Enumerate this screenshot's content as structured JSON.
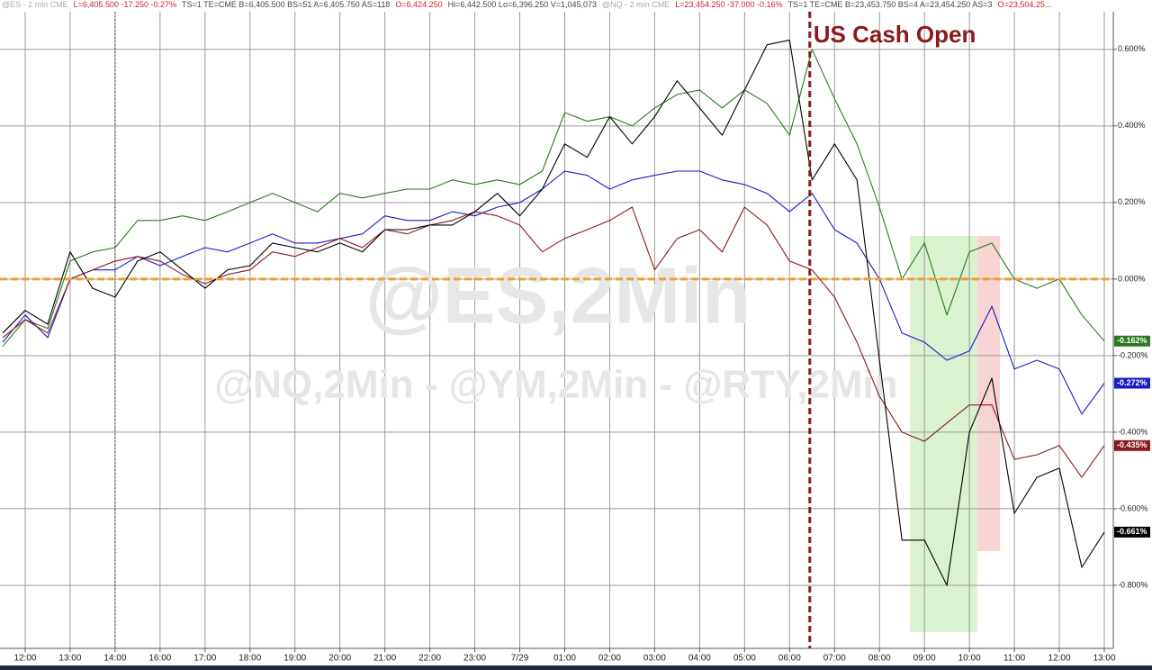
{
  "header": {
    "segments": [
      {
        "text": "@ES - 2 min  CME",
        "color": "#aaaaaa"
      },
      {
        "text": "L=6,405.500  -17.250  -0.27%",
        "color": "#cc2222"
      },
      {
        "text": "TS=1   TE=CME  B=6,405.500  BS=51    A=6,405.750  AS=118",
        "color": "#444444"
      },
      {
        "text": "O=6,424.250",
        "color": "#cc2222"
      },
      {
        "text": "Hi=6,442.500   Lo=6,396.250   V=1,045,073",
        "color": "#444444"
      },
      {
        "text": "@NQ - 2 min  CME",
        "color": "#aaaaaa"
      },
      {
        "text": "L=23,454.250  -37.000  -0.16%",
        "color": "#cc2222"
      },
      {
        "text": "TS=1   TE=CME  B=23,453.750  BS=4    A=23,454.250  AS=3",
        "color": "#444444"
      },
      {
        "text": "O=23,504.25...",
        "color": "#cc2222"
      }
    ]
  },
  "chart_data": {
    "type": "line",
    "watermarks": [
      "@ES,2Min",
      "@NQ,2Min - @YM,2Min - @RTY,2Min"
    ],
    "annotation": {
      "text": "US Cash Open",
      "x": 17.45,
      "color": "#8b1a1a"
    },
    "session_break_x": 2,
    "reference_line": {
      "value": 0,
      "color": "#f0a030"
    },
    "shaded_regions": [
      {
        "x": [
          19.68,
          21.18
        ],
        "y": [
          -0.922,
          0.113
        ],
        "color": "#d4f0c8"
      },
      {
        "x": [
          21.18,
          21.68
        ],
        "y": [
          -0.711,
          0.113
        ],
        "color": "#f8cccc"
      }
    ],
    "xlim": [
      -0.56,
      24.2
    ],
    "xticks": [
      {
        "value": 0,
        "label": "12:00"
      },
      {
        "value": 1,
        "label": "13:00"
      },
      {
        "value": 2,
        "label": "14:00"
      },
      {
        "value": 3,
        "label": "16:00"
      },
      {
        "value": 4,
        "label": "17:00"
      },
      {
        "value": 5,
        "label": "18:00"
      },
      {
        "value": 6,
        "label": "19:00"
      },
      {
        "value": 7,
        "label": "20:00"
      },
      {
        "value": 8,
        "label": "21:00"
      },
      {
        "value": 9,
        "label": "22:00"
      },
      {
        "value": 10,
        "label": "23:00"
      },
      {
        "value": 11,
        "label": "7/29"
      },
      {
        "value": 12,
        "label": "01:00"
      },
      {
        "value": 13,
        "label": "02:00"
      },
      {
        "value": 14,
        "label": "03:00"
      },
      {
        "value": 15,
        "label": "04:00"
      },
      {
        "value": 16,
        "label": "05:00"
      },
      {
        "value": 17,
        "label": "06:00"
      },
      {
        "value": 18,
        "label": "07:00"
      },
      {
        "value": 19,
        "label": "08:00"
      },
      {
        "value": 20,
        "label": "09:00"
      },
      {
        "value": 21,
        "label": "10:00"
      },
      {
        "value": 22,
        "label": "11:00"
      },
      {
        "value": 23,
        "label": "12:00"
      },
      {
        "value": 24,
        "label": "13:00"
      }
    ],
    "ylim": [
      -0.946,
      0.729
    ],
    "yticks": [
      {
        "value": 0.6,
        "label": "0.600%"
      },
      {
        "value": 0.4,
        "label": "0.400%"
      },
      {
        "value": 0.2,
        "label": "0.200%"
      },
      {
        "value": 0,
        "label": "0.000%"
      },
      {
        "value": -0.2,
        "label": "-0.200%"
      },
      {
        "value": -0.4,
        "label": "-0.400%"
      },
      {
        "value": -0.6,
        "label": "-0.600%"
      },
      {
        "value": -0.8,
        "label": "-0.800%"
      }
    ],
    "grid": true,
    "x": [
      -0.5,
      0,
      0.5,
      1,
      1.5,
      2,
      2.5,
      3,
      3.5,
      4,
      4.5,
      5,
      5.5,
      6,
      6.5,
      7,
      7.5,
      8,
      8.5,
      9,
      9.5,
      10,
      10.5,
      11,
      11.5,
      12,
      12.5,
      13,
      13.5,
      14,
      14.5,
      15,
      15.5,
      16,
      16.5,
      17,
      17.5,
      18,
      18.5,
      19,
      19.5,
      20,
      20.5,
      21,
      21.5,
      22,
      22.5,
      23,
      23.5,
      24
    ],
    "series": [
      {
        "color": "#2a7a1e",
        "values": [
          -0.176,
          -0.106,
          -0.129,
          0.047,
          0.071,
          0.082,
          0.153,
          0.153,
          0.165,
          0.153,
          0.176,
          0.2,
          0.224,
          0.2,
          0.176,
          0.224,
          0.212,
          0.224,
          0.235,
          0.235,
          0.259,
          0.247,
          0.259,
          0.247,
          0.282,
          0.435,
          0.412,
          0.424,
          0.4,
          0.447,
          0.482,
          0.494,
          0.447,
          0.494,
          0.459,
          0.376,
          0.6,
          0.471,
          0.353,
          0.188,
          0,
          0.094,
          -0.094,
          0.071,
          0.094,
          0,
          -0.024,
          0,
          -0.094,
          -0.162
        ],
        "value_labels": [
          null,
          null,
          null,
          null,
          null,
          null,
          null,
          null,
          null,
          null,
          null,
          null,
          null,
          null,
          null,
          null,
          null,
          null,
          null,
          null,
          null,
          null,
          null,
          null,
          null,
          null,
          null,
          null,
          null,
          null,
          null,
          null,
          null,
          null,
          null,
          null,
          null,
          null,
          null,
          null,
          null,
          null,
          null,
          null,
          null,
          null,
          null,
          null,
          null,
          "-0.162%"
        ]
      },
      {
        "color": "#1a1acc",
        "values": [
          -0.165,
          -0.094,
          -0.153,
          0,
          0.024,
          0.024,
          0.059,
          0.035,
          0.059,
          0.082,
          0.071,
          0.094,
          0.118,
          0.094,
          0.094,
          0.106,
          0.118,
          0.165,
          0.153,
          0.153,
          0.176,
          0.165,
          0.188,
          0.2,
          0.235,
          0.282,
          0.271,
          0.235,
          0.259,
          0.271,
          0.282,
          0.282,
          0.259,
          0.247,
          0.224,
          0.176,
          0.224,
          0.129,
          0.094,
          0,
          -0.141,
          -0.165,
          -0.212,
          -0.188,
          -0.071,
          -0.235,
          -0.212,
          -0.235,
          -0.353,
          -0.272
        ],
        "value_labels": [
          null,
          null,
          null,
          null,
          null,
          null,
          null,
          null,
          null,
          null,
          null,
          null,
          null,
          null,
          null,
          null,
          null,
          null,
          null,
          null,
          null,
          null,
          null,
          null,
          null,
          null,
          null,
          null,
          null,
          null,
          null,
          null,
          null,
          null,
          null,
          null,
          null,
          null,
          null,
          null,
          null,
          null,
          null,
          null,
          null,
          null,
          null,
          null,
          null,
          "-0.272%"
        ]
      },
      {
        "color": "#8b1a1a",
        "values": [
          -0.153,
          -0.106,
          -0.141,
          0,
          0.024,
          0.047,
          0.059,
          0.047,
          0.012,
          -0.012,
          0.012,
          0.024,
          0.071,
          0.059,
          0.082,
          0.106,
          0.082,
          0.129,
          0.118,
          0.141,
          0.153,
          0.176,
          0.165,
          0.141,
          0.071,
          0.106,
          0.129,
          0.153,
          0.188,
          0.024,
          0.106,
          0.129,
          0.071,
          0.188,
          0.141,
          0.047,
          0.024,
          -0.047,
          -0.165,
          -0.306,
          -0.4,
          -0.424,
          -0.376,
          -0.329,
          -0.329,
          -0.471,
          -0.459,
          -0.435,
          -0.518,
          -0.435
        ],
        "value_labels": [
          null,
          null,
          null,
          null,
          null,
          null,
          null,
          null,
          null,
          null,
          null,
          null,
          null,
          null,
          null,
          null,
          null,
          null,
          null,
          null,
          null,
          null,
          null,
          null,
          null,
          null,
          null,
          null,
          null,
          null,
          null,
          null,
          null,
          null,
          null,
          null,
          null,
          null,
          null,
          null,
          null,
          null,
          null,
          null,
          null,
          null,
          null,
          null,
          null,
          "-0.435%"
        ]
      },
      {
        "color": "#000000",
        "values": [
          -0.141,
          -0.082,
          -0.118,
          0.071,
          -0.024,
          -0.047,
          0.047,
          0.071,
          0.024,
          -0.024,
          0.024,
          0.035,
          0.094,
          0.082,
          0.071,
          0.094,
          0.071,
          0.129,
          0.129,
          0.141,
          0.141,
          0.176,
          0.224,
          0.165,
          0.235,
          0.353,
          0.318,
          0.424,
          0.353,
          0.424,
          0.518,
          0.447,
          0.376,
          0.494,
          0.612,
          0.624,
          0.259,
          0.353,
          0.259,
          -0.212,
          -0.682,
          -0.682,
          -0.8,
          -0.4,
          -0.259,
          -0.612,
          -0.518,
          -0.494,
          -0.753,
          -0.661
        ],
        "value_labels": [
          null,
          null,
          null,
          null,
          null,
          null,
          null,
          null,
          null,
          null,
          null,
          null,
          null,
          null,
          null,
          null,
          null,
          null,
          null,
          null,
          null,
          null,
          null,
          null,
          null,
          null,
          null,
          null,
          null,
          null,
          null,
          null,
          null,
          null,
          null,
          null,
          null,
          null,
          null,
          null,
          null,
          null,
          null,
          null,
          null,
          null,
          null,
          null,
          null,
          "-0.661%"
        ]
      }
    ]
  }
}
